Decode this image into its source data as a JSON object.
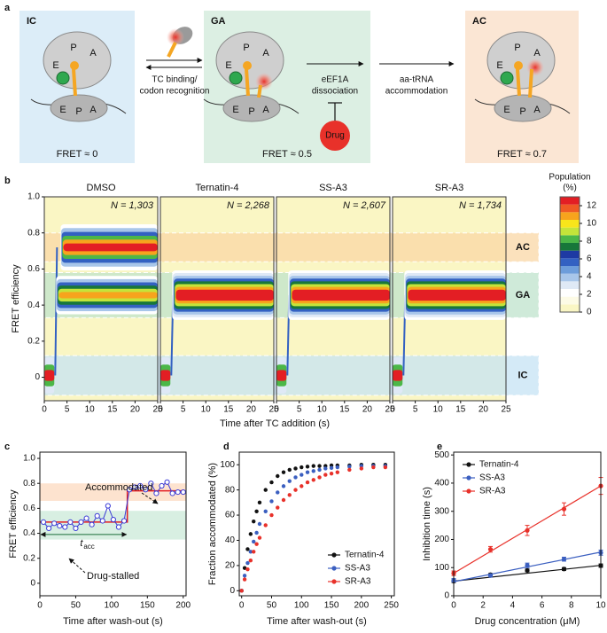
{
  "panel_labels": [
    "a",
    "b",
    "c",
    "d",
    "e"
  ],
  "diagram": {
    "states": [
      {
        "name": "IC",
        "sites_top": [
          "E",
          "P",
          "A"
        ],
        "sites_bottom": [
          "E",
          "P",
          "A"
        ],
        "fret": "FRET ≈ 0",
        "color": "#dcedf8"
      },
      {
        "name": "GA",
        "sites_top": [
          "E",
          "P",
          "A"
        ],
        "sites_bottom": [
          "E",
          "P",
          "A"
        ],
        "fret": "FRET ≈ 0.5",
        "color": "#dcefe3"
      },
      {
        "name": "AC",
        "sites_top": [
          "E",
          "P",
          "A"
        ],
        "sites_bottom": [
          "E",
          "P",
          "A"
        ],
        "fret": "FRET ≈ 0.7",
        "color": "#fbe6d4"
      }
    ],
    "steps": [
      [
        "TC binding/",
        "codon recognition"
      ],
      [
        "eEF1A",
        "dissociation"
      ],
      [
        "aa-tRNA",
        "accommodation"
      ]
    ],
    "drug": "Drug"
  },
  "chart_data": [
    {
      "type": "heatmap",
      "panels": [
        {
          "title": "DMSO",
          "n": "N = 1,303"
        },
        {
          "title": "Ternatin-4",
          "n": "N = 2,268"
        },
        {
          "title": "SS-A3",
          "n": "N = 2,607"
        },
        {
          "title": "SR-A3",
          "n": "N = 1,734"
        }
      ],
      "xlim": [
        0,
        25
      ],
      "xticks": [
        0,
        5,
        10,
        15,
        20,
        25
      ],
      "ylim": [
        -0.13,
        1.0
      ],
      "yticks": [
        0,
        0.2,
        0.4,
        0.6,
        0.8,
        {
          "value": 1,
          "label": "1.0"
        }
      ],
      "xlabel": "Time after TC addition (s)",
      "ylabel": "FRET efficiency",
      "state_bands": [
        {
          "name": "AC",
          "range": [
            0.64,
            0.8
          ],
          "color": "#f9d7a6"
        },
        {
          "name": "GA",
          "range": [
            0.33,
            0.58
          ],
          "color": "#bfe3cc"
        },
        {
          "name": "IC",
          "range": [
            -0.1,
            0.12
          ],
          "color": "#c6e3f4"
        }
      ],
      "colorbar": {
        "title": [
          "Population",
          "(%)"
        ],
        "lim": [
          0,
          13
        ],
        "ticks": [
          0,
          2,
          4,
          6,
          8,
          10,
          12
        ],
        "colors": [
          "#faf6c4",
          "#fdfbe6",
          "#ffffff",
          "#dfe9f6",
          "#a8c6ea",
          "#6d9ddb",
          "#3361c2",
          "#1e3aa3",
          "#17773a",
          "#4cb748",
          "#c4e43a",
          "#f8e51b",
          "#f7a41d",
          "#ef5a24",
          "#e31e24"
        ]
      }
    },
    {
      "type": "line",
      "x": [
        5,
        12.5,
        20,
        27.5,
        35,
        42.5,
        50,
        57.5,
        65,
        72.5,
        80,
        87.5,
        95,
        102.5,
        110,
        117.5,
        125,
        132.5,
        140,
        147.5,
        155,
        162.5,
        170,
        177.5,
        185,
        192.5,
        200
      ],
      "values": [
        0.49,
        0.44,
        0.48,
        0.46,
        0.45,
        0.49,
        0.44,
        0.49,
        0.52,
        0.47,
        0.54,
        0.5,
        0.62,
        0.51,
        0.45,
        0.5,
        0.75,
        0.77,
        0.78,
        0.75,
        0.8,
        0.72,
        0.78,
        0.81,
        0.72,
        0.73,
        0.73
      ],
      "color": "#3b3bd6",
      "fit": {
        "x": [
          0,
          122,
          122,
          200
        ],
        "values": [
          0.49,
          0.49,
          0.74,
          0.74
        ],
        "color": "#e31e24"
      },
      "state_bands": [
        {
          "range": [
            0.35,
            0.58
          ],
          "color": "#d8efe2"
        },
        {
          "range": [
            0.66,
            0.8
          ],
          "color": "#fde3cf"
        }
      ],
      "annotations": {
        "accommodated": "Accommodated",
        "drug_stalled": "Drug-stalled",
        "t_symbol": "t",
        "t_subscript": "acc"
      },
      "xlim": [
        0,
        204
      ],
      "xticks": [
        0,
        50,
        100,
        150,
        200
      ],
      "ylim": [
        -0.1,
        1.05
      ],
      "yticks": [
        0,
        0.2,
        0.4,
        0.6,
        0.8,
        {
          "value": 1,
          "label": "1.0"
        }
      ],
      "xlabel": "Time after wash-out (s)",
      "ylabel": "FRET efficiency"
    },
    {
      "type": "scatter",
      "x": [
        0,
        5,
        10,
        15,
        20,
        25,
        30,
        40,
        50,
        60,
        70,
        80,
        90,
        100,
        110,
        120,
        130,
        140,
        150,
        160,
        180,
        200,
        220,
        240
      ],
      "series": [
        {
          "name": "Ternatin-4",
          "color": "#111111",
          "values": [
            0,
            18,
            33,
            45,
            55,
            63,
            70,
            80,
            86,
            91,
            94,
            96,
            97,
            98,
            98.5,
            99,
            99,
            99,
            99.5,
            99.5,
            99.5,
            100,
            100,
            100
          ]
        },
        {
          "name": "SS-A3",
          "color": "#3b5fc0",
          "values": [
            0,
            12,
            22,
            31,
            39,
            46,
            53,
            63,
            71,
            78,
            83,
            87,
            90,
            92,
            94,
            95,
            96,
            97,
            97.5,
            98,
            98.5,
            99,
            99,
            99
          ]
        },
        {
          "name": "SR-A3",
          "color": "#e8312a",
          "values": [
            0,
            9,
            17,
            24,
            31,
            37,
            42,
            52,
            60,
            66,
            72,
            76,
            80,
            83,
            86,
            88,
            90,
            92,
            93,
            94,
            96,
            97,
            98,
            98
          ]
        }
      ],
      "legend": "lower right",
      "xlim": [
        -4,
        255
      ],
      "xticks": [
        0,
        50,
        100,
        150,
        200,
        250
      ],
      "ylim": [
        -4,
        110
      ],
      "yticks": [
        0,
        20,
        40,
        60,
        80,
        100
      ],
      "xlabel": "Time after wash-out (s)",
      "ylabel": "Fraction accommodated (%)"
    },
    {
      "type": "scatter",
      "x": [
        0,
        2.5,
        5,
        7.5,
        10
      ],
      "series": [
        {
          "name": "Ternatin-4",
          "color": "#111111",
          "values": [
            52,
            75,
            90,
            95,
            107
          ],
          "errors": [
            5,
            4,
            5,
            5,
            6
          ],
          "fit": [
            52,
            108
          ]
        },
        {
          "name": "SS-A3",
          "color": "#3b5fc0",
          "values": [
            55,
            72,
            108,
            130,
            153
          ],
          "errors": [
            6,
            5,
            8,
            7,
            9
          ],
          "fit": [
            50,
            155
          ]
        },
        {
          "name": "SR-A3",
          "color": "#e8312a",
          "values": [
            80,
            165,
            232,
            308,
            390
          ],
          "errors": [
            8,
            10,
            18,
            22,
            30
          ],
          "fit": [
            80,
            390
          ]
        }
      ],
      "legend": "upper left",
      "xlim": [
        0,
        10
      ],
      "xticks": [
        0,
        2,
        4,
        6,
        8,
        10
      ],
      "ylim": [
        0,
        510
      ],
      "yticks": [
        0,
        100,
        200,
        300,
        400,
        500
      ],
      "xlabel": "Drug concentration (μM)",
      "ylabel": "Inhibition time (s)"
    }
  ]
}
